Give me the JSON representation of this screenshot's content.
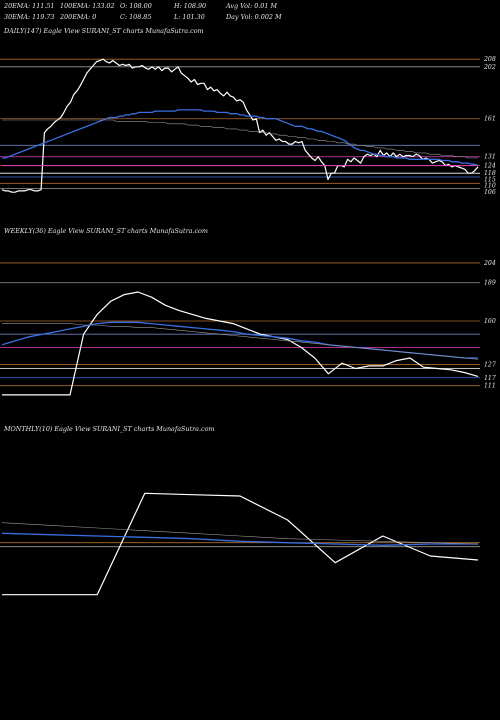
{
  "header": {
    "row1": [
      "20EMA: 111.51",
      "100EMA: 133.02",
      "O: 108.00",
      "H: 108.90",
      "Avg Vol: 0.01 M"
    ],
    "row2": [
      "30EMA: 119.73",
      "200EMA: 0",
      "C: 108.85",
      "L: 101.30",
      "Day Vol: 0.002  M"
    ]
  },
  "colors": {
    "background": "#000000",
    "price": "#ffffff",
    "ema_blue": "#3a6fe0",
    "ema_magenta": "#e040c0",
    "level_orange": "#b06a2a"
  },
  "chart_data": [
    {
      "type": "line",
      "title": "DAILY(147) Eagle  View  SURANI_ST charts MunafaSutra.com",
      "ylim": [
        85,
        235
      ],
      "price_labels": [
        "208",
        "202",
        "161",
        "131",
        "124",
        "118",
        "115",
        "110",
        "106"
      ],
      "series": [
        {
          "values": [
            105,
            104,
            104,
            103,
            103,
            104,
            104,
            104,
            105,
            105,
            104,
            104,
            105,
            150,
            153,
            155,
            158,
            160,
            162,
            166,
            171,
            174,
            180,
            183,
            187,
            192,
            197,
            200,
            203,
            206,
            207,
            208,
            206,
            205,
            207,
            205,
            203,
            204,
            203,
            204,
            201,
            202,
            202,
            203,
            201,
            200,
            202,
            200,
            202,
            199,
            201,
            201,
            198,
            200,
            202,
            197,
            195,
            193,
            190,
            192,
            188,
            189,
            189,
            184,
            186,
            183,
            184,
            181,
            179,
            182,
            179,
            178,
            175,
            176,
            174,
            168,
            164,
            160,
            161,
            150,
            152,
            148,
            150,
            147,
            144,
            145,
            143,
            143,
            141,
            141,
            143,
            142,
            143,
            136,
            133,
            130,
            128,
            131,
            127,
            124,
            113,
            118,
            118,
            124,
            124,
            123,
            129,
            127,
            130,
            128,
            126,
            131,
            133,
            132,
            133,
            131,
            136,
            132,
            134,
            131,
            134,
            131,
            133,
            131,
            132,
            132,
            131,
            133,
            132,
            129,
            130,
            129,
            126,
            127,
            128,
            127,
            124,
            125,
            123,
            124,
            123,
            122,
            121,
            118,
            118,
            120,
            123
          ]
        },
        {
          "values": [
            130,
            130,
            131,
            132,
            133,
            134,
            135,
            136,
            137,
            138,
            139,
            140,
            141,
            142,
            143,
            144,
            145,
            146,
            147,
            148,
            149,
            150,
            151,
            152,
            153,
            154,
            155,
            156,
            157,
            158,
            159,
            160,
            161,
            162,
            162,
            162,
            163,
            163,
            164,
            164,
            165,
            165,
            166,
            166,
            166,
            166,
            166,
            167,
            167,
            167,
            167,
            167,
            167,
            167,
            168,
            168,
            168,
            168,
            168,
            168,
            168,
            168,
            167,
            167,
            167,
            167,
            166,
            166,
            166,
            166,
            165,
            165,
            165,
            164,
            164,
            163,
            163,
            163,
            163,
            162,
            162,
            161,
            161,
            161,
            161,
            160,
            159,
            158,
            157,
            156,
            155,
            155,
            155,
            154,
            153,
            153,
            152,
            151,
            151,
            150,
            149,
            148,
            147,
            146,
            145,
            144,
            142,
            140,
            138,
            137,
            136,
            136,
            135,
            134,
            133,
            133,
            132,
            132,
            131,
            131,
            131,
            130,
            130,
            130,
            130,
            129,
            129,
            129,
            129,
            129,
            129,
            129,
            129,
            129,
            129,
            128,
            128,
            128,
            127,
            127,
            127,
            126,
            126,
            126,
            125,
            125,
            124
          ]
        },
        {
          "values": [
            160,
            160,
            160,
            160,
            160,
            160,
            160,
            160,
            160,
            160,
            160,
            160,
            160,
            160,
            160,
            160,
            160,
            160,
            160,
            160,
            160,
            160,
            160,
            160,
            160,
            160,
            160,
            160,
            160,
            160,
            160,
            160,
            160,
            160,
            160,
            159,
            159,
            159,
            159,
            159,
            159,
            159,
            159,
            159,
            159,
            158,
            158,
            158,
            158,
            158,
            158,
            157,
            157,
            157,
            157,
            157,
            157,
            156,
            156,
            156,
            156,
            155,
            155,
            155,
            155,
            154,
            154,
            154,
            154,
            153,
            153,
            153,
            153,
            152,
            152,
            152,
            151,
            151,
            151,
            150,
            150,
            150,
            149,
            149,
            149,
            148,
            148,
            148,
            147,
            147,
            147,
            146,
            146,
            146,
            145,
            145,
            145,
            144,
            144,
            144,
            143,
            143,
            143,
            142,
            142,
            142,
            141,
            141,
            141,
            140,
            140,
            140,
            139,
            139,
            139,
            138,
            138,
            138,
            137,
            137,
            137,
            136,
            136,
            136,
            135,
            135,
            135,
            134,
            134,
            134,
            134,
            133,
            133,
            133,
            133,
            132,
            132,
            132,
            132,
            131,
            131,
            131,
            131,
            130,
            130,
            130,
            130
          ]
        },
        {
          "values": [
            124,
            124,
            124,
            124,
            124,
            124,
            124,
            124,
            124,
            124,
            124,
            124,
            124,
            124,
            124,
            124,
            124,
            124,
            124,
            124,
            124,
            124,
            124,
            124,
            124,
            124,
            124,
            124,
            124,
            124,
            124,
            124,
            124,
            124,
            124,
            124,
            124,
            124,
            124,
            124,
            124,
            124,
            124,
            124,
            124,
            124,
            124,
            124,
            124,
            124,
            124,
            124,
            124,
            124,
            124,
            124,
            124,
            124,
            124,
            124,
            124,
            124,
            124,
            124,
            124,
            124,
            124,
            124,
            124,
            124,
            124,
            124,
            124,
            124,
            124,
            124,
            124,
            124,
            124,
            124,
            124,
            124,
            124,
            124,
            124,
            124,
            124,
            124,
            124,
            124,
            124,
            124,
            124,
            124,
            124,
            124,
            124,
            124,
            124,
            124,
            124,
            124,
            124,
            124,
            124,
            124,
            124,
            124,
            124,
            124,
            124,
            124,
            124,
            124,
            124,
            124,
            124,
            124,
            124,
            124,
            124,
            124,
            124,
            124,
            124,
            124,
            124,
            124,
            124,
            124,
            124,
            124,
            124,
            124,
            124,
            124,
            124,
            124,
            124,
            124,
            124,
            124,
            124,
            124,
            124,
            124,
            124
          ]
        }
      ],
      "levels": [
        208,
        202,
        161,
        140,
        131,
        124,
        118,
        115,
        110,
        106
      ]
    },
    {
      "type": "line",
      "title": "WEEKLY(36) Eagle  View  SURANI_ST charts MunafaSutra.com",
      "ylim": [
        85,
        235
      ],
      "price_labels": [
        "204",
        "189",
        "160",
        "127",
        "117",
        "111"
      ],
      "series": [
        {
          "values": [
            104,
            104,
            104,
            104,
            104,
            104,
            150,
            165,
            175,
            180,
            182,
            178,
            172,
            168,
            165,
            162,
            160,
            158,
            154,
            150,
            148,
            146,
            140,
            132,
            120,
            128,
            124,
            126,
            126,
            130,
            132,
            125,
            124,
            123,
            121,
            118
          ]
        },
        {
          "values": [
            142,
            145,
            148,
            150,
            152,
            154,
            156,
            158,
            159,
            159,
            159,
            158,
            157,
            156,
            155,
            154,
            153,
            152,
            150,
            149,
            148,
            147,
            145,
            144,
            142,
            141,
            140,
            139,
            138,
            137,
            136,
            135,
            134,
            133,
            132,
            132
          ]
        },
        {
          "values": [
            158,
            158,
            158,
            158,
            158,
            158,
            157,
            157,
            156,
            156,
            155,
            155,
            154,
            153,
            152,
            151,
            150,
            149,
            148,
            147,
            146,
            145,
            144,
            143,
            142,
            141,
            140,
            139,
            138,
            137,
            136,
            135,
            134,
            133,
            132,
            131
          ]
        }
      ],
      "levels": [
        204,
        189,
        160,
        150,
        140,
        127,
        124,
        117,
        111
      ]
    },
    {
      "type": "line",
      "title": "MONTHLY(10) Eagle  View  SURANI_ST charts MunafaSutra.com",
      "ylim": [
        85,
        235
      ],
      "series": [
        {
          "values": [
            104,
            104,
            104,
            180,
            179,
            178,
            160,
            128,
            148,
            133,
            130
          ]
        },
        {
          "values": [
            150,
            149,
            148,
            147,
            146,
            144,
            143,
            142,
            141,
            142,
            142
          ]
        },
        {
          "values": [
            158,
            156,
            154,
            152,
            150,
            148,
            146,
            145,
            144,
            143,
            142
          ]
        }
      ],
      "levels": [
        143,
        140
      ]
    }
  ]
}
